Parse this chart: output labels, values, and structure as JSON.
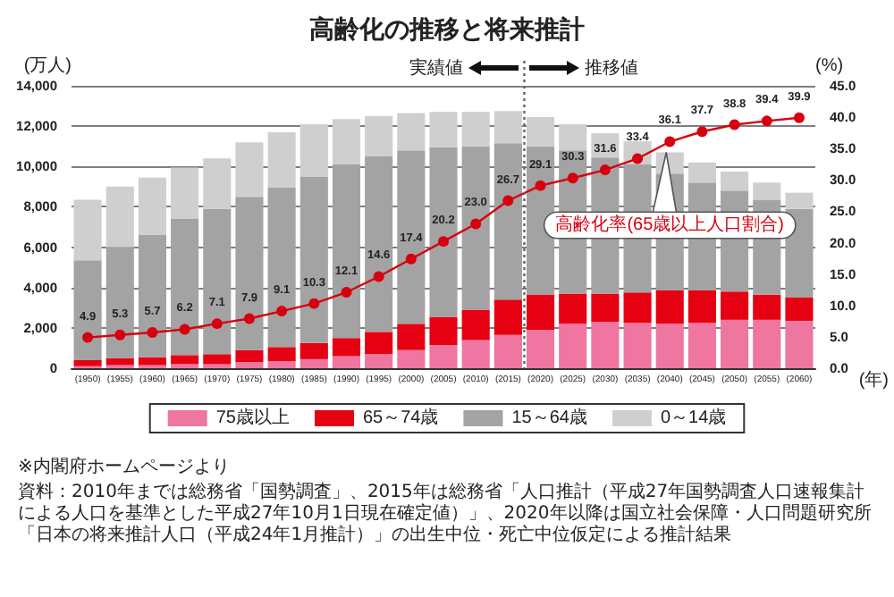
{
  "chart_data": {
    "type": "bar",
    "title": "高齢化の推移と将来推計",
    "categories": [
      "(1950)",
      "(1955)",
      "(1960)",
      "(1965)",
      "(1970)",
      "(1975)",
      "(1980)",
      "(1985)",
      "(1990)",
      "(1995)",
      "(2000)",
      "(2005)",
      "(2010)",
      "(2015)",
      "(2020)",
      "(2025)",
      "(2030)",
      "(2035)",
      "(2040)",
      "(2045)",
      "(2050)",
      "(2055)",
      "(2060)"
    ],
    "xlabel": "(年)",
    "ylabel": "(万人)",
    "y2label": "(%)",
    "stacked": true,
    "series": [
      {
        "name": "75歳以上",
        "color": "#ee76a0",
        "values": [
          100,
          150,
          150,
          200,
          200,
          300,
          350,
          450,
          600,
          700,
          900,
          1150,
          1400,
          1650,
          1900,
          2200,
          2300,
          2250,
          2200,
          2250,
          2400,
          2400,
          2350
        ]
      },
      {
        "name": "65～74歳",
        "color": "#e50012",
        "values": [
          300,
          350,
          400,
          450,
          500,
          600,
          700,
          800,
          900,
          1100,
          1300,
          1400,
          1500,
          1750,
          1750,
          1500,
          1400,
          1500,
          1650,
          1600,
          1400,
          1250,
          1150
        ]
      },
      {
        "name": "15～64歳",
        "color": "#a3a3a3",
        "values": [
          4950,
          5500,
          6050,
          6750,
          7200,
          7600,
          7900,
          8250,
          8600,
          8700,
          8600,
          8400,
          8100,
          7750,
          7350,
          7100,
          6750,
          6350,
          5800,
          5350,
          5000,
          4700,
          4400
        ]
      },
      {
        "name": "0～14歳",
        "color": "#cfcfcf",
        "values": [
          3000,
          3000,
          2850,
          2550,
          2500,
          2700,
          2750,
          2600,
          2250,
          2000,
          1850,
          1750,
          1700,
          1600,
          1450,
          1300,
          1200,
          1150,
          1050,
          1000,
          950,
          850,
          800
        ]
      },
      {
        "name": "高齢化率(65歳以上人口割合)",
        "type": "line",
        "axis": "y2",
        "color": "#d7000f",
        "values": [
          4.9,
          5.3,
          5.7,
          6.2,
          7.1,
          7.9,
          9.1,
          10.3,
          12.1,
          14.6,
          17.4,
          20.2,
          23.0,
          26.7,
          29.1,
          30.3,
          31.6,
          33.4,
          36.1,
          37.7,
          38.8,
          39.4,
          39.9
        ],
        "value_labels": [
          "4.9",
          "5.3",
          "5.7",
          "6.2",
          "7.1",
          "7.9",
          "9.1",
          "10.3",
          "12.1",
          "14.6",
          "17.4",
          "20.2",
          "23.0",
          "26.7",
          "29.1",
          "30.3",
          "31.6",
          "33.4",
          "36.1",
          "37.7",
          "38.8",
          "39.4",
          "39.9"
        ]
      }
    ],
    "ylim": [
      0,
      14000
    ],
    "yticks": [
      0,
      {
        "value": 2000,
        "label": "2,000"
      },
      {
        "value": 4000,
        "label": "4,000"
      },
      {
        "value": 6000,
        "label": "6,000"
      },
      {
        "value": 8000,
        "label": "8,000"
      },
      {
        "value": 10000,
        "label": "10,000"
      },
      {
        "value": 12000,
        "label": "12,000"
      },
      {
        "value": 14000,
        "label": "14,000"
      }
    ],
    "y2lim": [
      0,
      45
    ],
    "y2ticks": [
      {
        "value": 0,
        "label": "0.0"
      },
      {
        "value": 5,
        "label": "5.0"
      },
      {
        "value": 10,
        "label": "10.0"
      },
      {
        "value": 15,
        "label": "15.0"
      },
      {
        "value": 20,
        "label": "20.0"
      },
      {
        "value": 25,
        "label": "25.0"
      },
      {
        "value": 30,
        "label": "30.0"
      },
      {
        "value": 35,
        "label": "35.0"
      },
      {
        "value": 40,
        "label": "40.0"
      },
      {
        "value": 45,
        "label": "45.0"
      }
    ],
    "ref_lines": [
      {
        "axis": "x",
        "value": "(2015)",
        "line_style": "dotted",
        "color": "#666666"
      }
    ],
    "annotations": [
      "実績値",
      "推移値",
      "※内閣府ホームページより",
      "資料：2010年までは総務省「国勢調査」、2015年は総務省「人口推計（平成27年国勢調査人口速報集計による人口を基準とした平成27年10月1日現在確定値）」、2020年以降は国立社会保障・人口問題研究所「日本の将来推計人口（平成24年1月推計）」の出生中位・死亡中位仮定による推計結果"
    ],
    "grid": "y",
    "legend": "bottom",
    "marker": "circle",
    "line_style": "solid"
  }
}
